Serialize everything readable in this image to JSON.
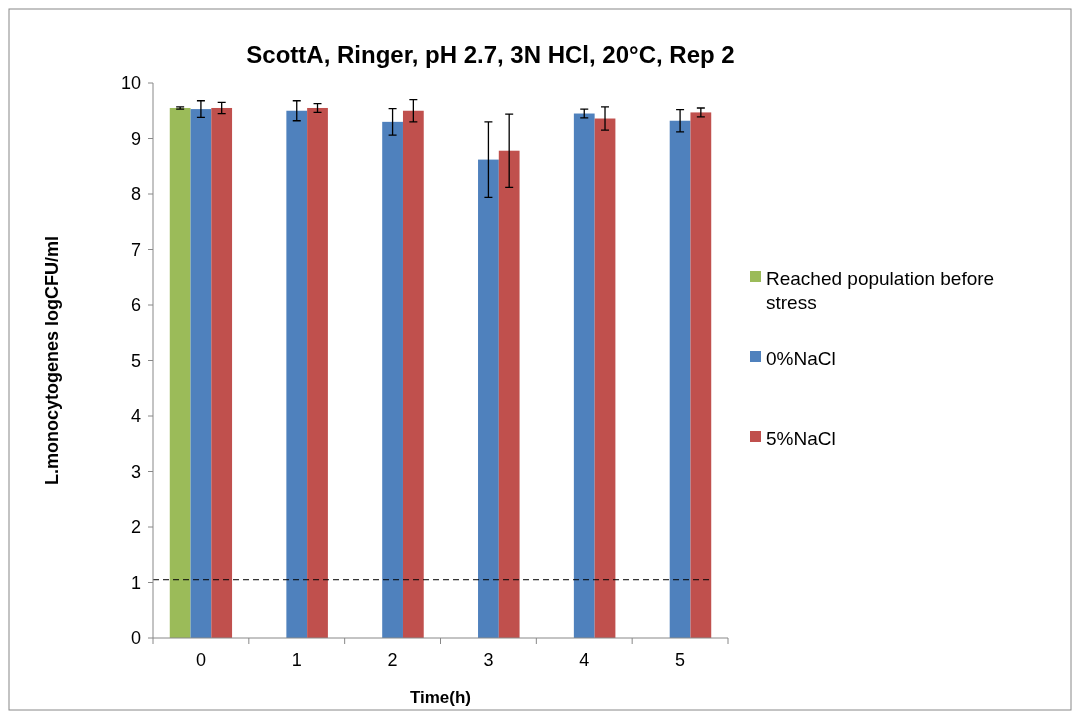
{
  "chart_data": {
    "type": "bar",
    "title": "ScottA, Ringer, pH 2.7, 3N HCl, 20°C, Rep 2",
    "xlabel": "Time(h)",
    "ylabel": "L.monocytogenes logCFU/ml",
    "categories": [
      "0",
      "1",
      "2",
      "3",
      "4",
      "5"
    ],
    "series": [
      {
        "name": "Reached population before stress",
        "color": "#9bbb59",
        "values": [
          9.55,
          null,
          null,
          null,
          null,
          null
        ],
        "errors": [
          0.02,
          null,
          null,
          null,
          null,
          null
        ]
      },
      {
        "name": "0%NaCl",
        "color": "#4f81bd",
        "values": [
          9.53,
          9.5,
          9.3,
          8.62,
          9.45,
          9.32
        ],
        "errors": [
          0.15,
          0.18,
          0.24,
          0.68,
          0.08,
          0.2
        ]
      },
      {
        "name": "5%NaCl",
        "color": "#c0504d",
        "values": [
          9.55,
          9.55,
          9.5,
          8.78,
          9.36,
          9.47
        ],
        "errors": [
          0.1,
          0.08,
          0.2,
          0.66,
          0.21,
          0.08
        ]
      }
    ],
    "ylim": [
      0,
      10
    ],
    "yticks": [
      0,
      1,
      2,
      3,
      4,
      5,
      6,
      7,
      8,
      9,
      10
    ],
    "grid": false,
    "legend": "right",
    "ref_lines": [
      {
        "axis": "y",
        "value": 1.05,
        "line_style": "dashed",
        "color": "#000000"
      }
    ]
  }
}
